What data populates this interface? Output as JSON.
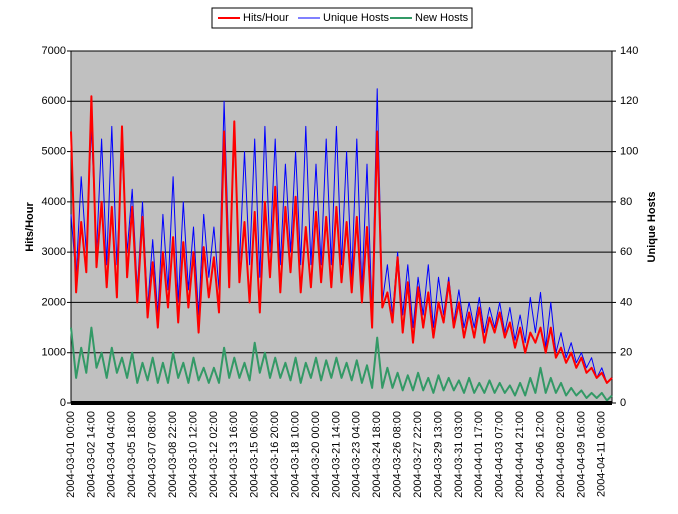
{
  "chart_data": {
    "type": "line",
    "y_label": "Hits/Hour",
    "y2_label": "Unique Hosts",
    "legend": "top",
    "categories": [
      "2004-03-01 00:00",
      null,
      null,
      null,
      "2004-03-02 14:00",
      null,
      null,
      null,
      "2004-03-04 04:00",
      null,
      null,
      null,
      "2004-03-05 18:00",
      null,
      null,
      null,
      "2004-03-07 08:00",
      null,
      null,
      null,
      "2004-03-08 22:00",
      null,
      null,
      null,
      "2004-03-10 12:00",
      null,
      null,
      null,
      "2004-03-12 02:00",
      null,
      null,
      null,
      "2004-03-13 16:00",
      null,
      null,
      null,
      "2004-03-15 06:00",
      null,
      null,
      null,
      "2004-03-16 20:00",
      null,
      null,
      null,
      "2004-03-18 10:00",
      null,
      null,
      null,
      "2004-03-20 00:00",
      null,
      null,
      null,
      "2004-03-21 14:00",
      null,
      null,
      null,
      "2004-03-23 04:00",
      null,
      null,
      null,
      "2004-03-24 18:00",
      null,
      null,
      null,
      "2004-03-26 08:00",
      null,
      null,
      null,
      "2004-03-27 22:00",
      null,
      null,
      null,
      "2004-03-29 13:00",
      null,
      null,
      null,
      "2004-03-31 03:00",
      null,
      null,
      null,
      "2004-04-01 17:00",
      null,
      null,
      null,
      "2004-04-03 07:00",
      null,
      null,
      null,
      "2004-04-04 21:00",
      null,
      null,
      null,
      "2004-04-06 12:00",
      null,
      null,
      null,
      "2004-04-08 02:00",
      null,
      null,
      null,
      "2004-04-09 16:00",
      null,
      null,
      null,
      "2004-04-11 06:00",
      null,
      null
    ],
    "series": [
      {
        "name": "Hits/Hour",
        "color": "#ff0000",
        "axis": "y",
        "values": [
          5400,
          2200,
          3600,
          2600,
          6100,
          2700,
          4000,
          2300,
          3900,
          2100,
          5500,
          2500,
          3900,
          2000,
          3700,
          1700,
          2800,
          1500,
          3000,
          1900,
          3300,
          1600,
          3200,
          1900,
          3000,
          1400,
          3100,
          2100,
          2900,
          1800,
          5400,
          2300,
          5600,
          2400,
          3600,
          2000,
          3800,
          1800,
          4000,
          2500,
          4300,
          2200,
          3900,
          2600,
          4100,
          2200,
          3500,
          2300,
          3800,
          2400,
          3700,
          2300,
          3900,
          2400,
          3600,
          2200,
          3700,
          2000,
          3500,
          1500,
          5400,
          1900,
          2200,
          1600,
          2900,
          1400,
          2400,
          1200,
          2300,
          1500,
          2200,
          1300,
          2000,
          1600,
          2400,
          1500,
          2000,
          1300,
          1800,
          1300,
          1900,
          1200,
          1700,
          1400,
          1800,
          1300,
          1600,
          1100,
          1500,
          1000,
          1400,
          1200,
          1500,
          1000,
          1500,
          900,
          1100,
          800,
          1000,
          700,
          900,
          600,
          700,
          500,
          600,
          400,
          500
        ]
      },
      {
        "name": "Unique Hosts",
        "color": "#0000ff",
        "axis": "y2",
        "values": [
          75,
          50,
          90,
          60,
          110,
          60,
          105,
          55,
          110,
          55,
          100,
          60,
          85,
          45,
          80,
          38,
          65,
          35,
          75,
          45,
          90,
          40,
          80,
          45,
          70,
          35,
          75,
          50,
          70,
          45,
          120,
          55,
          105,
          55,
          100,
          55,
          105,
          50,
          110,
          60,
          105,
          55,
          95,
          60,
          100,
          55,
          110,
          55,
          95,
          55,
          105,
          55,
          110,
          55,
          100,
          50,
          105,
          45,
          95,
          35,
          125,
          40,
          55,
          35,
          60,
          35,
          55,
          30,
          50,
          35,
          55,
          30,
          50,
          35,
          50,
          32,
          45,
          30,
          40,
          30,
          42,
          28,
          38,
          30,
          40,
          28,
          38,
          25,
          35,
          24,
          42,
          28,
          44,
          22,
          40,
          20,
          28,
          18,
          24,
          16,
          20,
          14,
          18,
          10,
          14,
          8,
          10
        ]
      },
      {
        "name": "New Hosts",
        "color": "#339966",
        "axis": "y2",
        "values": [
          30,
          10,
          22,
          12,
          30,
          14,
          20,
          10,
          22,
          12,
          18,
          10,
          20,
          8,
          16,
          9,
          18,
          8,
          16,
          8,
          20,
          10,
          16,
          8,
          18,
          9,
          14,
          8,
          14,
          8,
          22,
          10,
          18,
          10,
          16,
          9,
          24,
          12,
          20,
          10,
          18,
          10,
          16,
          9,
          18,
          8,
          16,
          10,
          18,
          9,
          17,
          10,
          18,
          10,
          16,
          9,
          17,
          8,
          15,
          6,
          26,
          6,
          14,
          6,
          12,
          5,
          11,
          5,
          12,
          5,
          10,
          4,
          11,
          5,
          10,
          5,
          9,
          4,
          10,
          4,
          8,
          4,
          9,
          4,
          8,
          4,
          7,
          3,
          8,
          3,
          10,
          4,
          14,
          4,
          10,
          4,
          8,
          3,
          6,
          3,
          5,
          2,
          4,
          2,
          4,
          1,
          3
        ]
      }
    ],
    "ylim": [
      0,
      7000
    ],
    "yticks": [
      0,
      1000,
      2000,
      3000,
      4000,
      5000,
      6000,
      7000
    ],
    "y2lim": [
      0,
      140
    ],
    "y2ticks": [
      0,
      20,
      40,
      60,
      80,
      100,
      120,
      140
    ],
    "grid": true
  }
}
